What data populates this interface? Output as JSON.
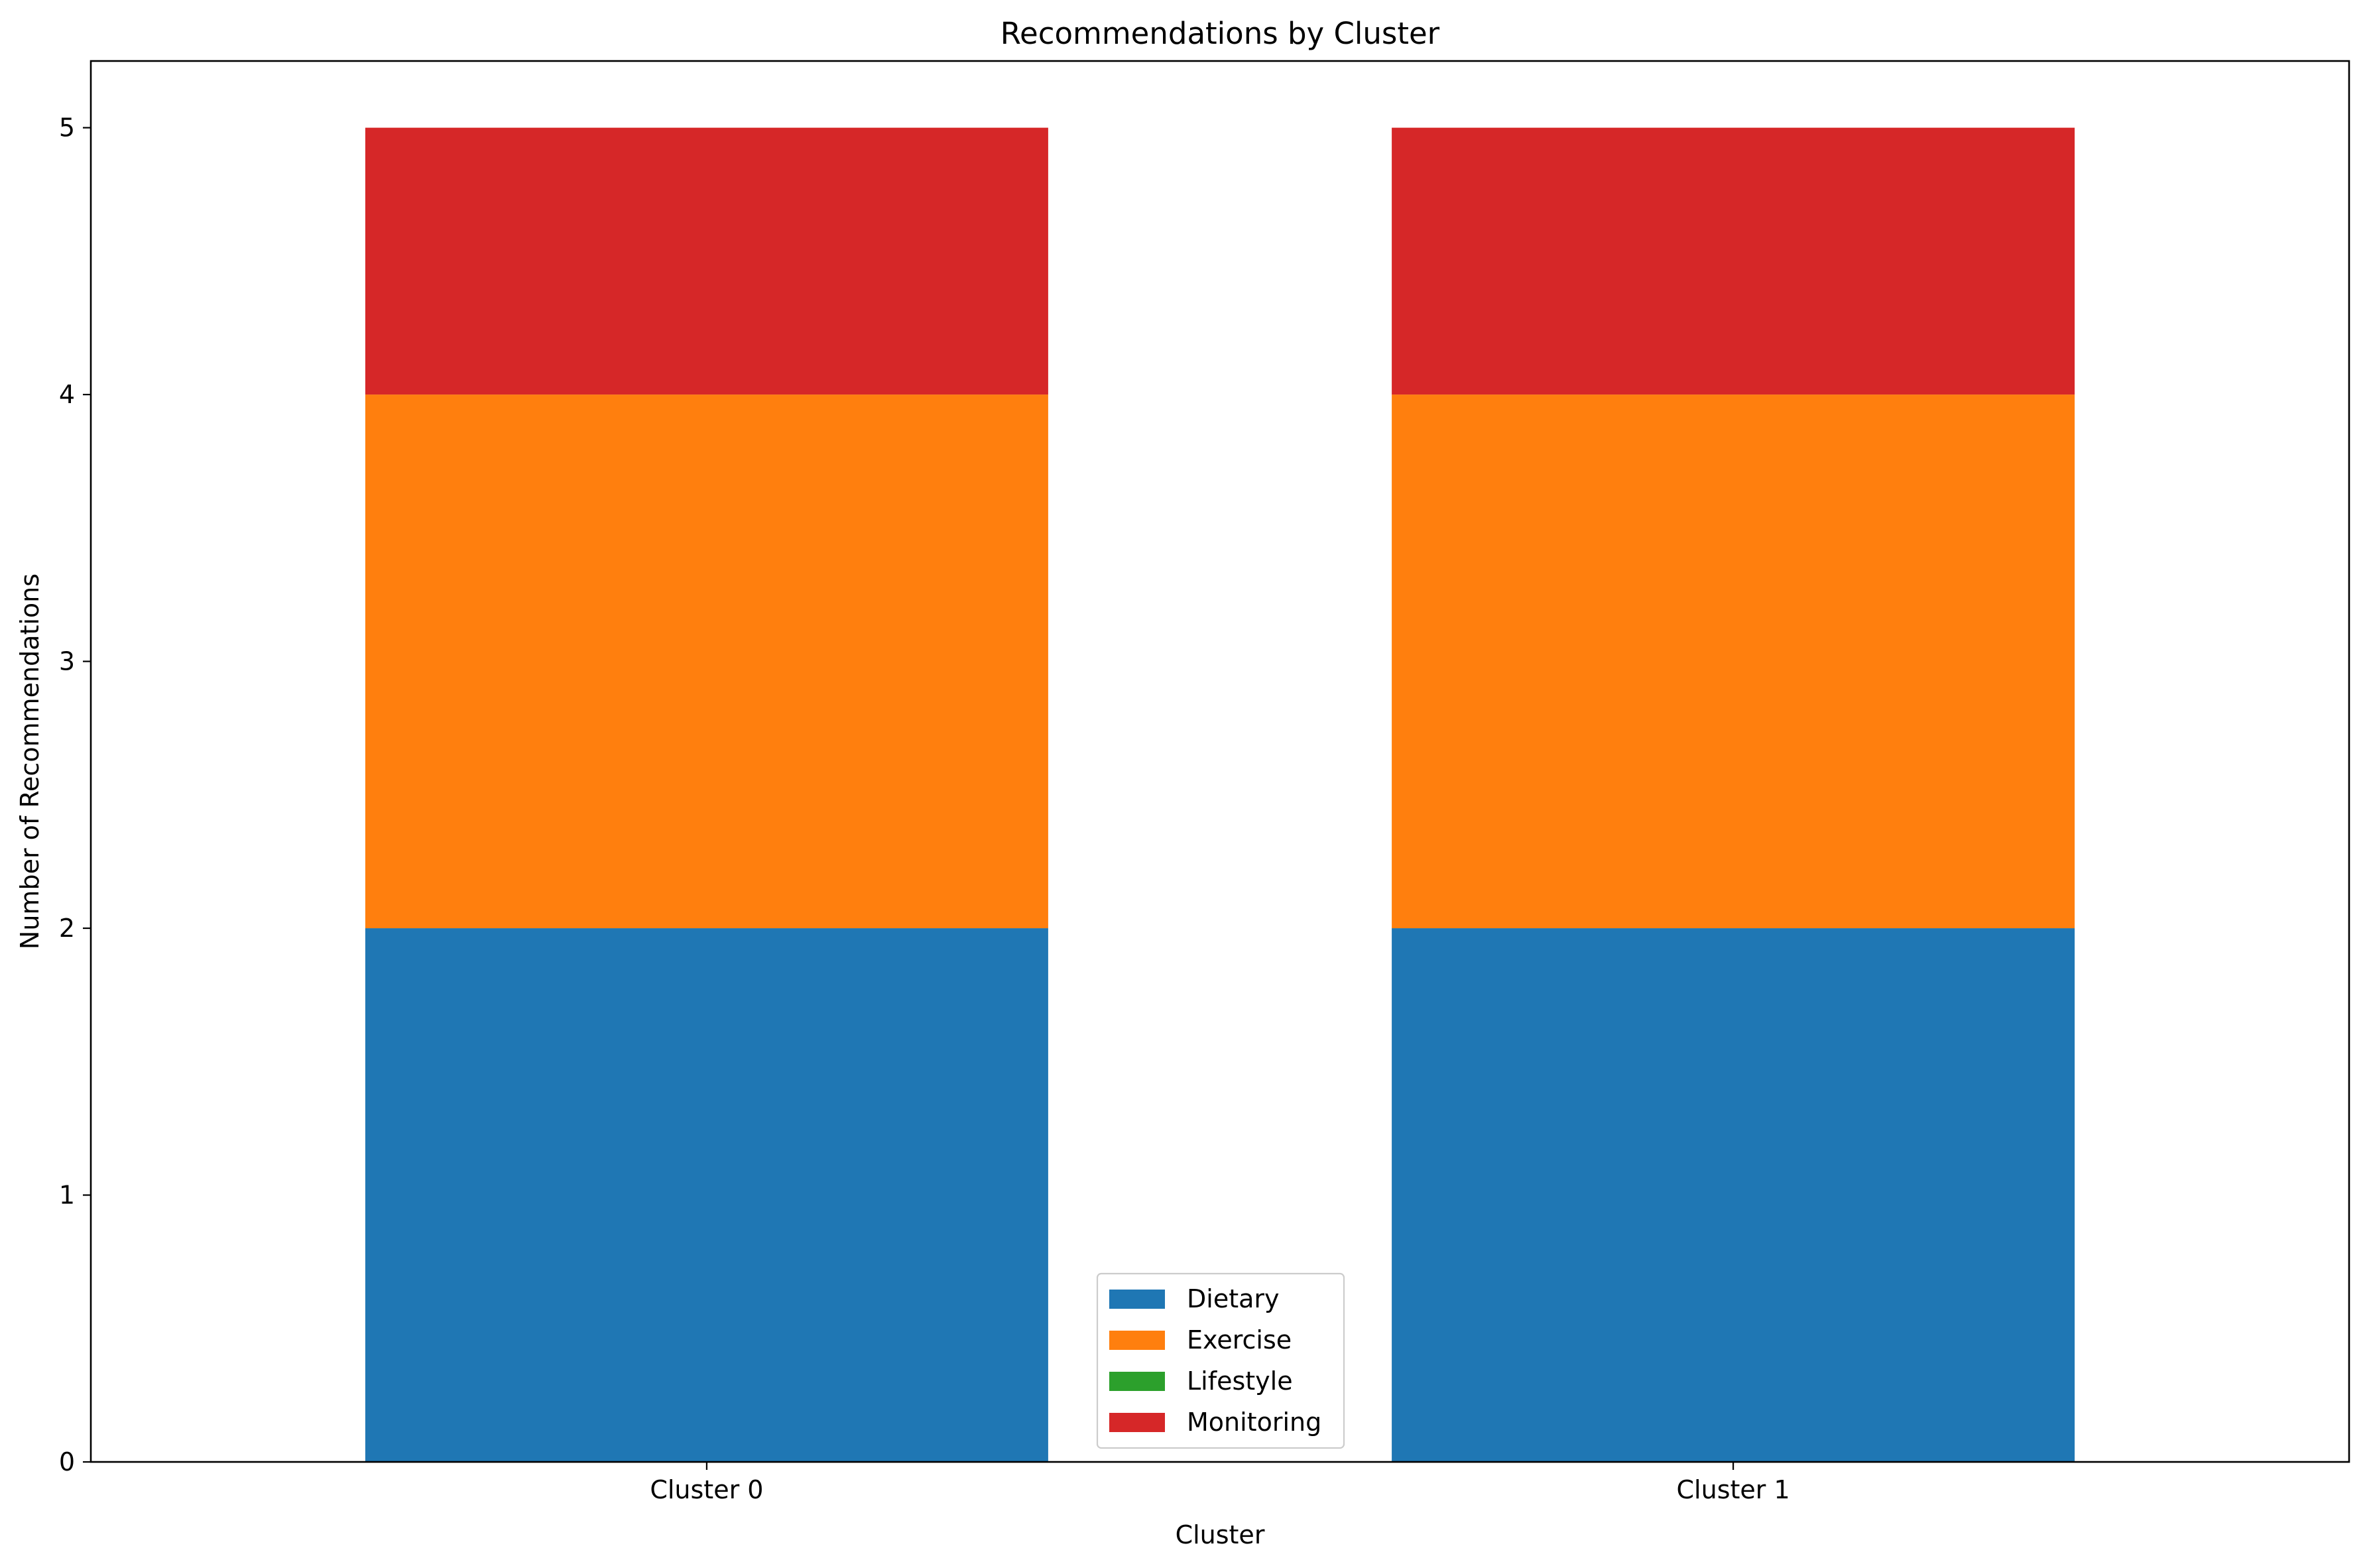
{
  "chart_data": {
    "type": "bar",
    "stacked": true,
    "title": "Recommendations by Cluster",
    "xlabel": "Cluster",
    "ylabel": "Number of Recommendations",
    "categories": [
      "Cluster 0",
      "Cluster 1"
    ],
    "series": [
      {
        "name": "Dietary",
        "values": [
          2,
          2
        ],
        "color": "#1f77b4"
      },
      {
        "name": "Exercise",
        "values": [
          2,
          2
        ],
        "color": "#ff7f0e"
      },
      {
        "name": "Lifestyle",
        "values": [
          0,
          0
        ],
        "color": "#2ca02c"
      },
      {
        "name": "Monitoring",
        "values": [
          1,
          1
        ],
        "color": "#d62728"
      }
    ],
    "ylim": [
      0,
      5.25
    ],
    "yticks": [
      0,
      1,
      2,
      3,
      4,
      5
    ],
    "grid": false,
    "legend_position": "lower-center"
  }
}
